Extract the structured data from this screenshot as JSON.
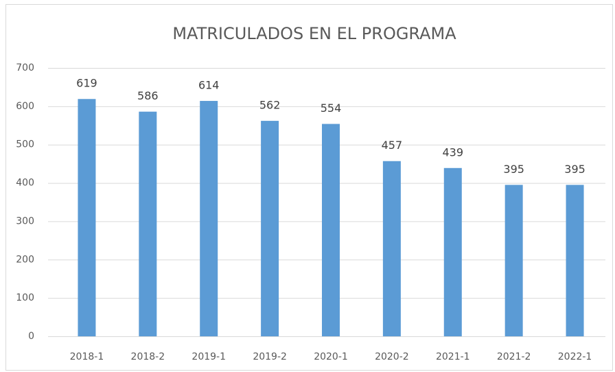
{
  "chart_data": {
    "type": "bar",
    "title": "MATRICULADOS EN EL PROGRAMA",
    "categories": [
      "2018-1",
      "2018-2",
      "2019-1",
      "2019-2",
      "2020-1",
      "2020-2",
      "2021-1",
      "2021-2",
      "2022-1"
    ],
    "values": [
      619,
      586,
      614,
      562,
      554,
      457,
      439,
      395,
      395
    ],
    "color": "#5b9bd5",
    "ylim": [
      0,
      700
    ],
    "yticks": [
      0,
      100,
      200,
      300,
      400,
      500,
      600,
      700
    ],
    "grid": true
  }
}
